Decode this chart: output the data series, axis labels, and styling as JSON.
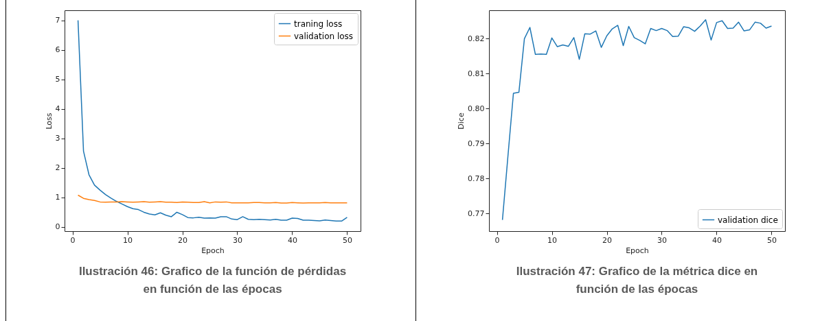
{
  "chart_data": [
    {
      "type": "line",
      "title": "Ilustración 46: Grafico de la función de pérdidas en función de las épocas",
      "xlabel": "Epoch",
      "ylabel": "Loss",
      "x": [
        1,
        2,
        3,
        4,
        5,
        6,
        7,
        8,
        9,
        10,
        11,
        12,
        13,
        14,
        15,
        16,
        17,
        18,
        19,
        20,
        21,
        22,
        23,
        24,
        25,
        26,
        27,
        28,
        29,
        30,
        31,
        32,
        33,
        34,
        35,
        36,
        37,
        38,
        39,
        40,
        41,
        42,
        43,
        44,
        45,
        46,
        47,
        48,
        49,
        50
      ],
      "series": [
        {
          "name": "traning loss",
          "color": "#1f77b4",
          "values": [
            7.0,
            2.57,
            1.77,
            1.42,
            1.25,
            1.1,
            0.98,
            0.87,
            0.78,
            0.69,
            0.62,
            0.59,
            0.5,
            0.44,
            0.41,
            0.48,
            0.4,
            0.35,
            0.5,
            0.42,
            0.32,
            0.31,
            0.33,
            0.3,
            0.31,
            0.3,
            0.35,
            0.35,
            0.27,
            0.25,
            0.35,
            0.26,
            0.25,
            0.26,
            0.25,
            0.24,
            0.26,
            0.23,
            0.23,
            0.3,
            0.29,
            0.23,
            0.23,
            0.22,
            0.21,
            0.24,
            0.22,
            0.2,
            0.2,
            0.33
          ]
        },
        {
          "name": "validation loss",
          "color": "#ff7f0e",
          "values": [
            1.08,
            0.97,
            0.93,
            0.9,
            0.85,
            0.84,
            0.85,
            0.85,
            0.86,
            0.85,
            0.84,
            0.85,
            0.86,
            0.84,
            0.85,
            0.86,
            0.84,
            0.84,
            0.83,
            0.85,
            0.84,
            0.83,
            0.83,
            0.86,
            0.82,
            0.85,
            0.84,
            0.85,
            0.82,
            0.82,
            0.82,
            0.82,
            0.83,
            0.83,
            0.82,
            0.82,
            0.83,
            0.81,
            0.81,
            0.83,
            0.82,
            0.81,
            0.82,
            0.82,
            0.82,
            0.83,
            0.82,
            0.82,
            0.82,
            0.82
          ]
        }
      ],
      "xlim": [
        -1.45,
        52.45
      ],
      "xticks": [
        0,
        10,
        20,
        30,
        40,
        50
      ],
      "ylim": [
        -0.14,
        7.34
      ],
      "yticks": [
        0,
        1,
        2,
        3,
        4,
        5,
        6,
        7
      ],
      "legend": "top right"
    },
    {
      "type": "line",
      "title": "Ilustración 47: Grafico de la métrica dice en función de las épocas",
      "xlabel": "Epoch",
      "ylabel": "Dice",
      "x": [
        1,
        2,
        3,
        4,
        5,
        6,
        7,
        8,
        9,
        10,
        11,
        12,
        13,
        14,
        15,
        16,
        17,
        18,
        19,
        20,
        21,
        22,
        23,
        24,
        25,
        26,
        27,
        28,
        29,
        30,
        31,
        32,
        33,
        34,
        35,
        36,
        37,
        38,
        39,
        40,
        41,
        42,
        43,
        44,
        45,
        46,
        47,
        48,
        49,
        50
      ],
      "series": [
        {
          "name": "validation dice",
          "color": "#1f77b4",
          "values": [
            0.7682,
            0.7864,
            0.8044,
            0.8047,
            0.82,
            0.8232,
            0.8155,
            0.8156,
            0.8155,
            0.8202,
            0.8177,
            0.8182,
            0.8178,
            0.8203,
            0.8141,
            0.8214,
            0.8213,
            0.8222,
            0.8175,
            0.8208,
            0.8228,
            0.8238,
            0.818,
            0.8235,
            0.8203,
            0.8195,
            0.8185,
            0.8229,
            0.8223,
            0.8229,
            0.8223,
            0.8206,
            0.8207,
            0.8234,
            0.8231,
            0.8221,
            0.8236,
            0.8254,
            0.8196,
            0.8246,
            0.8251,
            0.8229,
            0.823,
            0.8247,
            0.8222,
            0.8225,
            0.8247,
            0.8244,
            0.823,
            0.8236
          ]
        }
      ],
      "xlim": [
        -1.45,
        52.45
      ],
      "xticks": [
        0,
        10,
        20,
        30,
        40,
        50
      ],
      "ylim": [
        0.765,
        0.8281
      ],
      "yticks": [
        0.77,
        0.78,
        0.79,
        {
          "value": 0.8,
          "label": "0.80"
        },
        0.81,
        0.82
      ],
      "legend": "bottom right"
    }
  ]
}
